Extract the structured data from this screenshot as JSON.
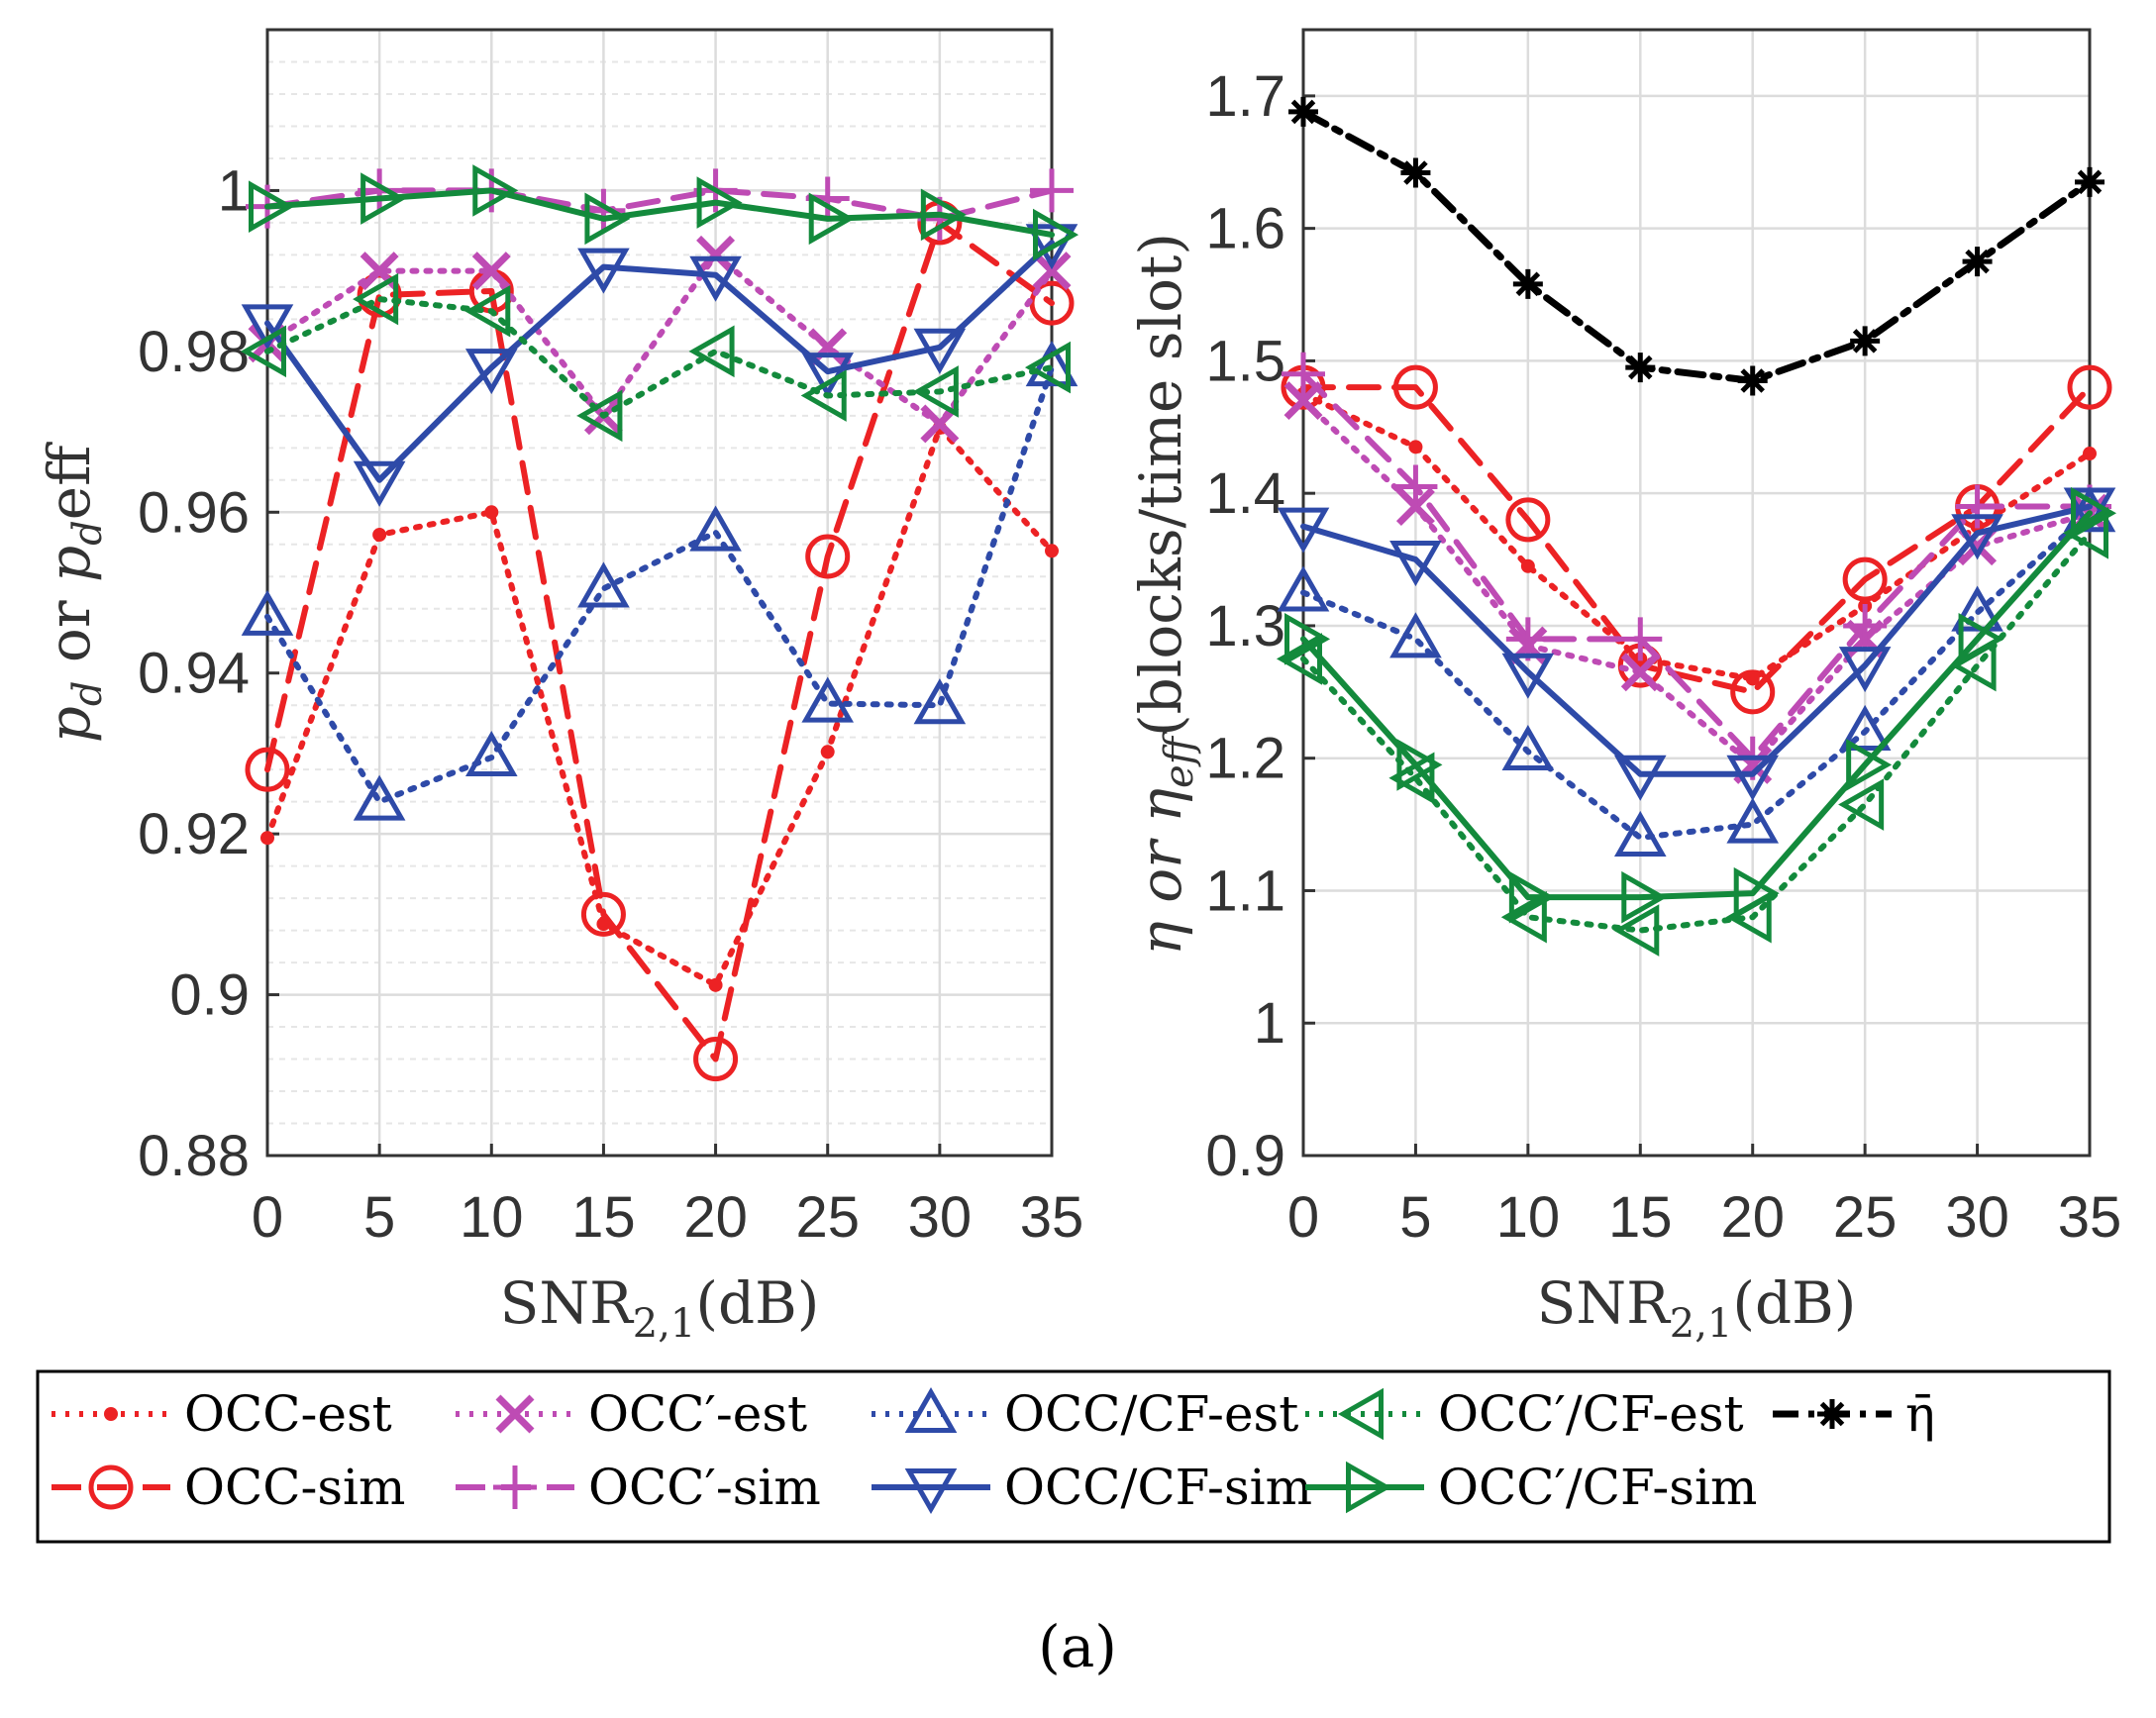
{
  "caption": "(a)",
  "colors": {
    "occ": "#ec2224",
    "occp": "#be4bb4",
    "cf": "#2e4aa8",
    "cfp": "#138a3c",
    "eta": "#000000",
    "grid": "#dcdcdc",
    "axis": "#333333"
  },
  "chart_data": [
    {
      "type": "line",
      "panel": "left",
      "xlabel_main": "SNR",
      "xlabel_sub": "2,1",
      "xlabel_unit": "(dB)",
      "ylabel": "p_d or p_d eff",
      "ylabel_parts": [
        "p",
        "d",
        " or ",
        "p",
        "d",
        "eff"
      ],
      "xlim": [
        0,
        35
      ],
      "ylim": [
        0.88,
        1.02
      ],
      "xticks": [
        0,
        5,
        10,
        15,
        20,
        25,
        30,
        35
      ],
      "xtick_labels": [
        "0",
        "5",
        "10",
        "15",
        "20",
        "25",
        "30",
        "35"
      ],
      "yticks": [
        0.88,
        0.9,
        0.92,
        0.94,
        0.96,
        0.98,
        1.0
      ],
      "ytick_labels": [
        "0.88",
        "0.9",
        "0.92",
        "0.94",
        "0.96",
        "0.98",
        "1"
      ],
      "minor_y_step": 0.004,
      "grid": true,
      "series": [
        {
          "key": "occ_est",
          "name": "OCC-est",
          "x": [
            0,
            5,
            10,
            15,
            20,
            25,
            30,
            35
          ],
          "y": [
            0.9195,
            0.9572,
            0.96,
            0.9088,
            0.9012,
            0.9302,
            0.9705,
            0.9552
          ]
        },
        {
          "key": "occ_sim",
          "name": "OCC-sim",
          "x": [
            0,
            5,
            10,
            15,
            20,
            25,
            30,
            35
          ],
          "y": [
            0.928,
            0.987,
            0.9875,
            0.91,
            0.892,
            0.9545,
            0.996,
            0.986
          ]
        },
        {
          "key": "occp_est",
          "name": "OCC′-est",
          "x": [
            0,
            5,
            10,
            15,
            20,
            25,
            30,
            35
          ],
          "y": [
            0.981,
            0.99,
            0.99,
            0.972,
            0.992,
            0.9805,
            0.971,
            0.99
          ]
        },
        {
          "key": "occp_sim",
          "name": "OCC′-sim",
          "x": [
            0,
            5,
            10,
            15,
            20,
            25,
            30,
            35
          ],
          "y": [
            0.998,
            1.0,
            1.0,
            0.9975,
            1.0,
            0.999,
            0.9965,
            1.0
          ]
        },
        {
          "key": "cf_est",
          "name": "OCC/CF-est",
          "x": [
            0,
            5,
            10,
            15,
            20,
            25,
            30,
            35
          ],
          "y": [
            0.947,
            0.924,
            0.9295,
            0.9505,
            0.9575,
            0.9362,
            0.936,
            0.978
          ]
        },
        {
          "key": "cf_sim",
          "name": "OCC/CF-sim",
          "x": [
            0,
            5,
            10,
            15,
            20,
            25,
            30,
            35
          ],
          "y": [
            0.9835,
            0.964,
            0.978,
            0.9905,
            0.9895,
            0.9775,
            0.9805,
            0.9935
          ]
        },
        {
          "key": "cfp_est",
          "name": "OCC′/CF-est",
          "x": [
            0,
            5,
            10,
            15,
            20,
            25,
            30,
            35
          ],
          "y": [
            0.98,
            0.9865,
            0.985,
            0.972,
            0.98,
            0.9745,
            0.975,
            0.978
          ]
        },
        {
          "key": "cfp_sim",
          "name": "OCC′/CF-sim",
          "x": [
            0,
            5,
            10,
            15,
            20,
            25,
            30,
            35
          ],
          "y": [
            0.998,
            0.999,
            1.0,
            0.9965,
            0.9985,
            0.9965,
            0.997,
            0.9945
          ]
        }
      ]
    },
    {
      "type": "line",
      "panel": "right",
      "xlabel_main": "SNR",
      "xlabel_sub": "2,1",
      "xlabel_unit": "(dB)",
      "ylabel": "η or η_eff(blocks/time slot)",
      "ylabel_parts": [
        "η or η",
        "eff",
        "(blocks/time slot)"
      ],
      "xlim": [
        0,
        35
      ],
      "ylim": [
        0.9,
        1.75
      ],
      "xticks": [
        0,
        5,
        10,
        15,
        20,
        25,
        30,
        35
      ],
      "xtick_labels": [
        "0",
        "5",
        "10",
        "15",
        "20",
        "25",
        "30",
        "35"
      ],
      "yticks": [
        0.9,
        1.0,
        1.1,
        1.2,
        1.3,
        1.4,
        1.5,
        1.6,
        1.7
      ],
      "ytick_labels": [
        "0.9",
        "1",
        "1.1",
        "1.2",
        "1.3",
        "1.4",
        "1.5",
        "1.6",
        "1.7"
      ],
      "grid": true,
      "series": [
        {
          "key": "occ_est",
          "name": "OCC-est",
          "x": [
            0,
            5,
            10,
            15,
            20,
            25,
            30,
            35
          ],
          "y": [
            1.475,
            1.435,
            1.345,
            1.275,
            1.26,
            1.315,
            1.375,
            1.43
          ]
        },
        {
          "key": "occ_sim",
          "name": "OCC-sim",
          "x": [
            0,
            5,
            10,
            15,
            20,
            25,
            30,
            35
          ],
          "y": [
            1.48,
            1.48,
            1.38,
            1.27,
            1.25,
            1.335,
            1.39,
            1.48
          ]
        },
        {
          "key": "occp_est",
          "name": "OCC′-est",
          "x": [
            0,
            5,
            10,
            15,
            20,
            25,
            30,
            35
          ],
          "y": [
            1.47,
            1.39,
            1.285,
            1.265,
            1.195,
            1.29,
            1.36,
            1.385
          ]
        },
        {
          "key": "occp_sim",
          "name": "OCC′-sim",
          "x": [
            0,
            5,
            10,
            15,
            20,
            25,
            30,
            35
          ],
          "y": [
            1.49,
            1.405,
            1.29,
            1.29,
            1.2,
            1.3,
            1.39,
            1.39
          ]
        },
        {
          "key": "cf_est",
          "name": "OCC/CF-est",
          "x": [
            0,
            5,
            10,
            15,
            20,
            25,
            30,
            35
          ],
          "y": [
            1.325,
            1.29,
            1.205,
            1.14,
            1.15,
            1.22,
            1.31,
            1.385
          ]
        },
        {
          "key": "cf_sim",
          "name": "OCC/CF-sim",
          "x": [
            0,
            5,
            10,
            15,
            20,
            25,
            30,
            35
          ],
          "y": [
            1.375,
            1.35,
            1.265,
            1.188,
            1.188,
            1.27,
            1.37,
            1.39
          ]
        },
        {
          "key": "cfp_est",
          "name": "OCC′/CF-est",
          "x": [
            0,
            5,
            10,
            15,
            20,
            25,
            30,
            35
          ],
          "y": [
            1.275,
            1.185,
            1.08,
            1.07,
            1.08,
            1.165,
            1.27,
            1.37
          ]
        },
        {
          "key": "cfp_sim",
          "name": "OCC′/CF-sim",
          "x": [
            0,
            5,
            10,
            15,
            20,
            25,
            30,
            35
          ],
          "y": [
            1.29,
            1.195,
            1.095,
            1.095,
            1.098,
            1.195,
            1.29,
            1.385
          ]
        },
        {
          "key": "eta",
          "name": "η̄",
          "x": [
            0,
            5,
            10,
            15,
            20,
            25,
            30,
            35
          ],
          "y": [
            1.688,
            1.642,
            1.558,
            1.495,
            1.485,
            1.515,
            1.575,
            1.635
          ]
        }
      ]
    }
  ],
  "legend": {
    "placement": "bottom",
    "items": [
      {
        "key": "occ_est",
        "label": "OCC-est"
      },
      {
        "key": "occp_est",
        "label": "OCC′-est"
      },
      {
        "key": "cf_est",
        "label": "OCC/CF-est"
      },
      {
        "key": "cfp_est",
        "label": "OCC′/CF-est"
      },
      {
        "key": "eta",
        "label": "η̄"
      },
      {
        "key": "occ_sim",
        "label": "OCC-sim"
      },
      {
        "key": "occp_sim",
        "label": "OCC′-sim"
      },
      {
        "key": "cf_sim",
        "label": "OCC/CF-sim"
      },
      {
        "key": "cfp_sim",
        "label": "OCC′/CF-sim"
      }
    ]
  }
}
